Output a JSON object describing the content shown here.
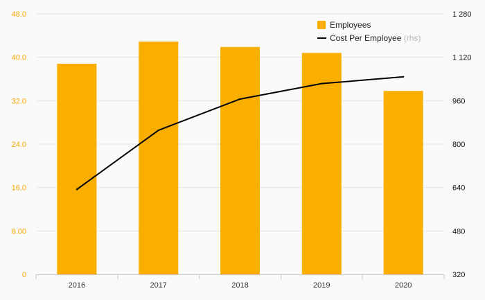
{
  "chart_data": {
    "type": "bar",
    "categories": [
      "2016",
      "2017",
      "2018",
      "2019",
      "2020"
    ],
    "series": [
      {
        "name": "Employees",
        "type": "bar",
        "axis": "left",
        "color": "#f9ae00",
        "values": [
          38.8,
          42.9,
          41.9,
          40.8,
          33.8
        ]
      },
      {
        "name": "Cost Per Employee",
        "name_suffix": "(rhs)",
        "type": "line",
        "axis": "right",
        "color": "#000000",
        "values": [
          633,
          851,
          966,
          1023,
          1048
        ]
      }
    ],
    "y_left": {
      "range": [
        0,
        48
      ],
      "ticks": [
        0,
        8,
        16,
        24,
        32,
        40,
        48
      ],
      "tick_labels": [
        "0",
        "8.00",
        "16.0",
        "24.0",
        "32.0",
        "40.0",
        "48.0"
      ],
      "color": "#f5a700"
    },
    "y_right": {
      "range": [
        320,
        1280
      ],
      "ticks": [
        320,
        480,
        640,
        800,
        960,
        1120,
        1280
      ],
      "tick_labels": [
        "320",
        "480",
        "640",
        "800",
        "960",
        "1 120",
        "1 280"
      ],
      "color": "#111111"
    },
    "grid": true,
    "legend": {
      "position": "top-right"
    }
  }
}
